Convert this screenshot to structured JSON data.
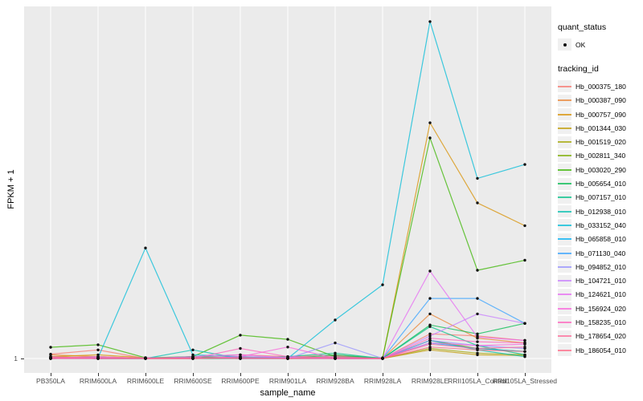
{
  "figure": {
    "y_axis_title": "FPKM + 1",
    "x_axis_title": "sample_name",
    "visible_y_tick_labels": [
      "1"
    ],
    "panel_bg": "#EBEBEB",
    "grid_color": "#FFFFFF",
    "tick_text_color": "#4D4D4D",
    "point_color": "#111111"
  },
  "legend": {
    "quant_status": {
      "title": "quant_status",
      "items": [
        {
          "label": "OK",
          "symbol": "point"
        }
      ]
    },
    "tracking_id_title": "tracking_id"
  },
  "chart_data": {
    "type": "line",
    "title": "",
    "xlabel": "sample_name",
    "ylabel": "FPKM + 1",
    "x_categories": [
      "PB350LA",
      "RRIM600LA",
      "RRIM600LE",
      "RRIM600SE",
      "RRIM600PE",
      "RRIM901LA",
      "RRIM928BA",
      "RRIM928LA",
      "RRIM928LE",
      "RRII105LA_Control",
      "RRII105LA_Stressed"
    ],
    "y_scale": "log10",
    "ylim": [
      1,
      10000
    ],
    "y_ticks_labeled": [
      1
    ],
    "grid": "vertical major per category, horizontal at y=1",
    "legend_position": "right",
    "marker": "small black point at every observation (quant_status = OK)",
    "series": [
      {
        "name": "Hb_000375_180",
        "color": "#F8766D",
        "values": [
          1.12,
          1.25,
          1.0,
          1.05,
          1.1,
          1.05,
          1.08,
          1.0,
          1.9,
          1.8,
          1.6
        ]
      },
      {
        "name": "Hb_000387_090",
        "color": "#EA8331",
        "values": [
          1.1,
          1.05,
          1.0,
          1.02,
          1.05,
          1.0,
          1.02,
          1.0,
          3.2,
          1.7,
          1.5
        ]
      },
      {
        "name": "Hb_000757_090",
        "color": "#D89000",
        "values": [
          1.05,
          1.1,
          1.02,
          1.0,
          1.02,
          1.0,
          1.0,
          1.0,
          470,
          58,
          32
        ]
      },
      {
        "name": "Hb_001344_030",
        "color": "#C09B00",
        "values": [
          1.0,
          1.02,
          1.0,
          1.0,
          1.0,
          1.02,
          1.0,
          1.0,
          1.25,
          1.1,
          1.08
        ]
      },
      {
        "name": "Hb_001519_020",
        "color": "#A3A500",
        "values": [
          1.02,
          1.0,
          1.0,
          1.02,
          1.0,
          1.0,
          1.02,
          1.0,
          1.3,
          1.15,
          1.1
        ]
      },
      {
        "name": "Hb_002811_340",
        "color": "#7CAE00",
        "values": [
          1.05,
          1.02,
          1.0,
          1.0,
          1.05,
          1.02,
          1.0,
          1.0,
          1.6,
          1.3,
          1.2
        ]
      },
      {
        "name": "Hb_003020_290",
        "color": "#39B600",
        "values": [
          1.34,
          1.43,
          1.02,
          1.05,
          1.84,
          1.65,
          1.05,
          1.02,
          316,
          10,
          13
        ]
      },
      {
        "name": "Hb_005654_010",
        "color": "#00BB4E",
        "values": [
          1.02,
          1.0,
          1.0,
          1.05,
          1.02,
          1.0,
          1.1,
          1.0,
          2.4,
          1.9,
          2.5
        ]
      },
      {
        "name": "Hb_007157_010",
        "color": "#00C087",
        "values": [
          1.0,
          1.02,
          1.0,
          1.0,
          1.0,
          1.05,
          1.15,
          1.0,
          2.3,
          1.4,
          1.1
        ]
      },
      {
        "name": "Hb_012938_010",
        "color": "#00C0AF",
        "values": [
          1.02,
          1.0,
          1.0,
          1.25,
          1.0,
          1.02,
          1.0,
          1.0,
          1.6,
          1.25,
          1.05
        ]
      },
      {
        "name": "Hb_033152_040",
        "color": "#00BCD8",
        "values": [
          1.0,
          1.02,
          17.9,
          1.1,
          1.05,
          1.0,
          2.73,
          6.85,
          6600,
          110,
          158
        ]
      },
      {
        "name": "Hb_065858_010",
        "color": "#00B0F6",
        "values": [
          1.02,
          1.0,
          1.0,
          1.02,
          1.0,
          1.0,
          1.05,
          1.0,
          1.5,
          1.3,
          1.2
        ]
      },
      {
        "name": "Hb_071130_040",
        "color": "#35A2FF",
        "values": [
          1.0,
          1.0,
          1.02,
          1.0,
          1.02,
          1.0,
          1.0,
          1.0,
          4.8,
          4.8,
          2.5
        ]
      },
      {
        "name": "Hb_094852_010",
        "color": "#9590FF",
        "values": [
          1.02,
          1.05,
          1.0,
          1.02,
          1.0,
          1.0,
          1.5,
          1.0,
          1.6,
          1.4,
          1.3
        ]
      },
      {
        "name": "Hb_104721_010",
        "color": "#C77CFF",
        "values": [
          1.0,
          1.02,
          1.0,
          1.0,
          1.05,
          1.02,
          1.0,
          1.0,
          1.8,
          3.2,
          2.5
        ]
      },
      {
        "name": "Hb_124621_010",
        "color": "#E76BF3",
        "values": [
          1.02,
          1.0,
          1.0,
          1.05,
          1.1,
          1.02,
          1.0,
          1.0,
          9.8,
          1.75,
          1.6
        ]
      },
      {
        "name": "Hb_156924_020",
        "color": "#FA62DB",
        "values": [
          1.0,
          1.02,
          1.0,
          1.0,
          1.05,
          1.35,
          1.0,
          1.0,
          1.5,
          1.4,
          1.45
        ]
      },
      {
        "name": "Hb_158235_010",
        "color": "#FF62BC",
        "values": [
          1.05,
          1.0,
          1.02,
          1.0,
          1.3,
          1.05,
          1.02,
          1.0,
          1.7,
          1.55,
          1.5
        ]
      },
      {
        "name": "Hb_178654_020",
        "color": "#FF6A98",
        "values": [
          1.02,
          1.05,
          1.0,
          1.02,
          1.0,
          1.0,
          1.0,
          1.0,
          1.45,
          1.3,
          1.35
        ]
      },
      {
        "name": "Hb_186054_010",
        "color": "#FF6886",
        "values": [
          1.0,
          1.0,
          1.0,
          1.0,
          1.02,
          1.0,
          1.05,
          1.0,
          1.35,
          1.25,
          1.2
        ]
      }
    ]
  }
}
